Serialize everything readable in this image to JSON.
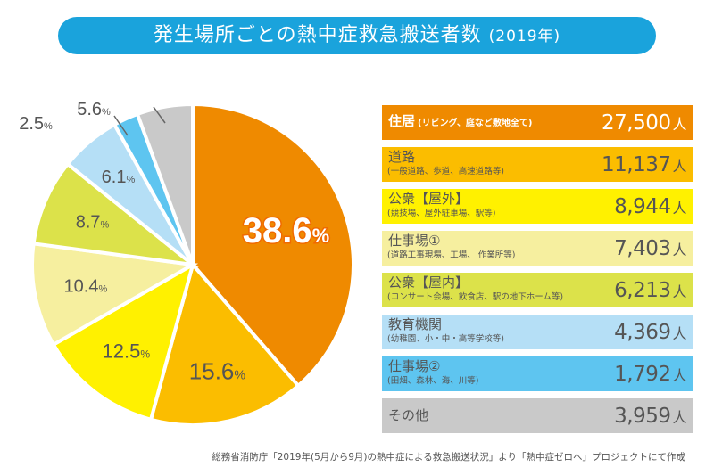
{
  "title": {
    "main": "発生場所ごとの熱中症救急搬送者数",
    "year": "(2019年)"
  },
  "chart_data": {
    "type": "pie",
    "title": "発生場所ごとの熱中症救急搬送者数 (2019年)",
    "unit_label": "人",
    "start": "12 o'clock, clockwise",
    "slices": [
      {
        "name": "住居",
        "detail": "(リビング、庭など敷地全て)",
        "count": "27,500",
        "percent": 38.6,
        "label": "38.6%",
        "color": "#ef8a00"
      },
      {
        "name": "道路",
        "detail": "(一般道路、歩道、高速道路等)",
        "count": "11,137",
        "percent": 15.6,
        "label": "15.6%",
        "color": "#fbbd00"
      },
      {
        "name": "公衆【屋外】",
        "detail": "(競技場、屋外駐車場、駅等)",
        "count": "8,944",
        "percent": 12.5,
        "label": "12.5%",
        "color": "#fff100"
      },
      {
        "name": "仕事場①",
        "detail": "(道路工事現場、工場、 作業所等)",
        "count": "7,403",
        "percent": 10.4,
        "label": "10.4%",
        "color": "#f6ef9f"
      },
      {
        "name": "公衆【屋内】",
        "detail": "(コンサート会場、飲食店、駅の地下ホーム等)",
        "count": "6,213",
        "percent": 8.7,
        "label": "8.7%",
        "color": "#dce24a"
      },
      {
        "name": "教育機関",
        "detail": "(幼稚園、小・中・高等学校等)",
        "count": "4,369",
        "percent": 6.1,
        "label": "6.1%",
        "color": "#b5dff6"
      },
      {
        "name": "仕事場②",
        "detail": "(田畑、森林、海、川等)",
        "count": "1,792",
        "percent": 2.5,
        "label": "2.5%",
        "color": "#5ec5f0"
      },
      {
        "name": "その他",
        "detail": "",
        "count": "3,959",
        "percent": 5.6,
        "label": "5.6%",
        "color": "#c9c9c9"
      }
    ]
  },
  "footer": "総務省消防庁「2019年(5月から9月)の熱中症による救急搬送状況」より「熱中症ゼロへ」プロジェクトにて作成"
}
